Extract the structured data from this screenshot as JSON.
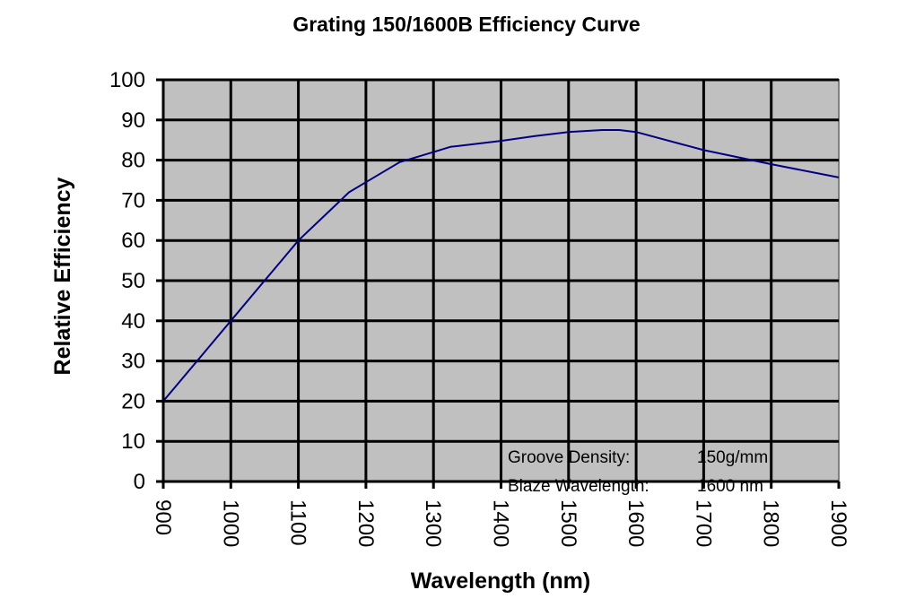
{
  "chart_data": {
    "type": "line",
    "title": "Grating 150/1600B Efficiency Curve",
    "xlabel": "Wavelength (nm)",
    "ylabel": "Relative Efficiency",
    "xlim": [
      900,
      1900
    ],
    "ylim": [
      0,
      100
    ],
    "xticks": [
      900,
      1000,
      1100,
      1200,
      1300,
      1400,
      1500,
      1600,
      1700,
      1800,
      1900
    ],
    "yticks": [
      0,
      10,
      20,
      30,
      40,
      50,
      60,
      70,
      80,
      90,
      100
    ],
    "grid": true,
    "plot_background": "#c0c0c0",
    "series": [
      {
        "name": "Efficiency",
        "color": "#000080",
        "x": [
          900,
          950,
          1000,
          1050,
          1075,
          1100,
          1150,
          1175,
          1200,
          1250,
          1300,
          1325,
          1400,
          1450,
          1500,
          1550,
          1575,
          1600,
          1700,
          1800,
          1900
        ],
        "y": [
          20,
          30,
          40,
          50,
          55,
          60,
          68,
          72,
          74.5,
          79.5,
          82,
          83.3,
          84.8,
          86,
          87,
          87.5,
          87.5,
          87,
          82.5,
          79,
          75.7
        ]
      }
    ],
    "annotations": [
      {
        "label": "Groove Density:",
        "value": "150g/mm"
      },
      {
        "label": "Blaze Wavelength:",
        "value": "1600 nm"
      }
    ]
  }
}
